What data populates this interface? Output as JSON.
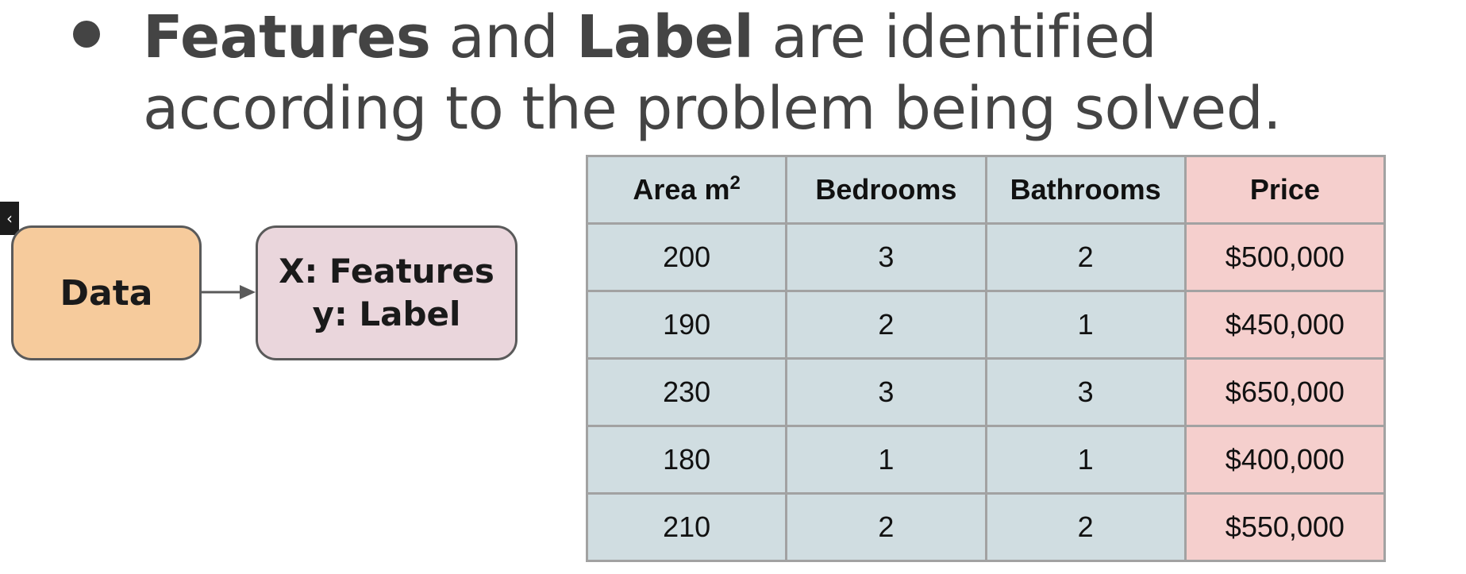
{
  "heading": {
    "line1_part1": "Features",
    "line1_part2": " and ",
    "line1_part3": "Label",
    "line1_part4": " are identified",
    "line2": "according to the problem being solved."
  },
  "side_tab": {
    "icon": "chevron-left-icon",
    "glyph": "‹"
  },
  "diagram": {
    "data_box": {
      "label": "Data",
      "color": "#f6cb9c"
    },
    "xy_box": {
      "line1": "X: Features",
      "line2": "y: Label",
      "color": "#ead6dc"
    }
  },
  "table": {
    "headers": {
      "area": "Area m",
      "area_sup": "2",
      "bedrooms": "Bedrooms",
      "bathrooms": "Bathrooms",
      "price": "Price"
    },
    "feature_color": "#d0dde1",
    "label_color": "#f5cfcd",
    "rows": [
      {
        "area": "200",
        "bedrooms": "3",
        "bathrooms": "2",
        "price": "$500,000"
      },
      {
        "area": "190",
        "bedrooms": "2",
        "bathrooms": "1",
        "price": "$450,000"
      },
      {
        "area": "230",
        "bedrooms": "3",
        "bathrooms": "3",
        "price": "$650,000"
      },
      {
        "area": "180",
        "bedrooms": "1",
        "bathrooms": "1",
        "price": "$400,000"
      },
      {
        "area": "210",
        "bedrooms": "2",
        "bathrooms": "2",
        "price": "$550,000"
      }
    ]
  }
}
